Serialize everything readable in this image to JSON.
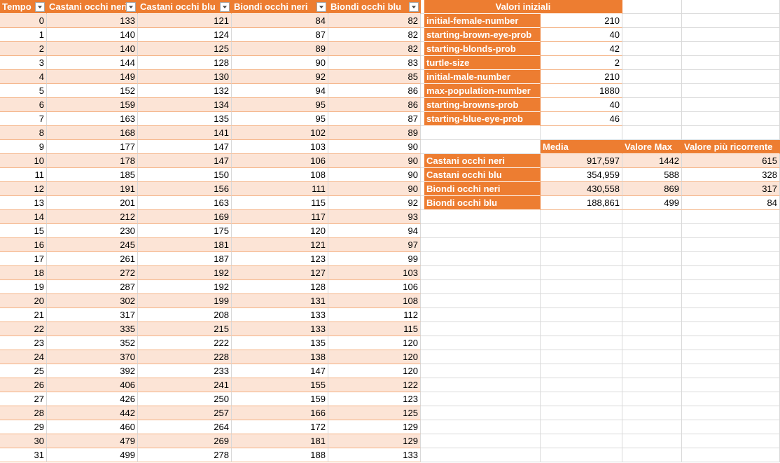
{
  "main_table": {
    "headers": [
      "Tempo",
      "Castani occhi neri",
      "Castani occhi blu",
      "Biondi occhi neri",
      "Biondi occhi blu"
    ],
    "filter_icon": "dropdown-arrow-icon",
    "rows": [
      [
        "0",
        "133",
        "121",
        "84",
        "82"
      ],
      [
        "1",
        "140",
        "124",
        "87",
        "82"
      ],
      [
        "2",
        "140",
        "125",
        "89",
        "82"
      ],
      [
        "3",
        "144",
        "128",
        "90",
        "83"
      ],
      [
        "4",
        "149",
        "130",
        "92",
        "85"
      ],
      [
        "5",
        "152",
        "132",
        "94",
        "86"
      ],
      [
        "6",
        "159",
        "134",
        "95",
        "86"
      ],
      [
        "7",
        "163",
        "135",
        "95",
        "87"
      ],
      [
        "8",
        "168",
        "141",
        "102",
        "89"
      ],
      [
        "9",
        "177",
        "147",
        "103",
        "90"
      ],
      [
        "10",
        "178",
        "147",
        "106",
        "90"
      ],
      [
        "11",
        "185",
        "150",
        "108",
        "90"
      ],
      [
        "12",
        "191",
        "156",
        "111",
        "90"
      ],
      [
        "13",
        "201",
        "163",
        "115",
        "92"
      ],
      [
        "14",
        "212",
        "169",
        "117",
        "93"
      ],
      [
        "15",
        "230",
        "175",
        "120",
        "94"
      ],
      [
        "16",
        "245",
        "181",
        "121",
        "97"
      ],
      [
        "17",
        "261",
        "187",
        "123",
        "99"
      ],
      [
        "18",
        "272",
        "192",
        "127",
        "103"
      ],
      [
        "19",
        "287",
        "192",
        "128",
        "106"
      ],
      [
        "20",
        "302",
        "199",
        "131",
        "108"
      ],
      [
        "21",
        "317",
        "208",
        "133",
        "112"
      ],
      [
        "22",
        "335",
        "215",
        "133",
        "115"
      ],
      [
        "23",
        "352",
        "222",
        "135",
        "120"
      ],
      [
        "24",
        "370",
        "228",
        "138",
        "120"
      ],
      [
        "25",
        "392",
        "233",
        "147",
        "120"
      ],
      [
        "26",
        "406",
        "241",
        "155",
        "122"
      ],
      [
        "27",
        "426",
        "250",
        "159",
        "123"
      ],
      [
        "28",
        "442",
        "257",
        "166",
        "125"
      ],
      [
        "29",
        "460",
        "264",
        "172",
        "129"
      ],
      [
        "30",
        "479",
        "269",
        "181",
        "129"
      ],
      [
        "31",
        "499",
        "278",
        "188",
        "133"
      ]
    ]
  },
  "initial_values": {
    "title": "Valori iniziali",
    "rows": [
      {
        "label": "initial-female-number",
        "value": "210"
      },
      {
        "label": "starting-brown-eye-prob",
        "value": "40"
      },
      {
        "label": "starting-blonds-prob",
        "value": "42"
      },
      {
        "label": "turtle-size",
        "value": "2"
      },
      {
        "label": "initial-male-number",
        "value": "210"
      },
      {
        "label": "max-population-number",
        "value": "1880"
      },
      {
        "label": "starting-browns-prob",
        "value": "40"
      },
      {
        "label": "starting-blue-eye-prob",
        "value": "46"
      }
    ]
  },
  "stats": {
    "headers": [
      "",
      "Media",
      "Valore Max",
      "Valore più ricorrente"
    ],
    "rows": [
      [
        "Castani occhi neri",
        "917,597",
        "1442",
        "615"
      ],
      [
        "Castani occhi blu",
        "354,959",
        "588",
        "328"
      ],
      [
        "Biondi occhi neri",
        "430,558",
        "869",
        "317"
      ],
      [
        "Biondi occhi blu",
        "188,861",
        "499",
        "84"
      ]
    ]
  },
  "colors": {
    "header_orange": "#ed7d31",
    "band_light": "#fce4d6",
    "band_border": "#f4b183",
    "gridline": "#d9d9d9"
  }
}
